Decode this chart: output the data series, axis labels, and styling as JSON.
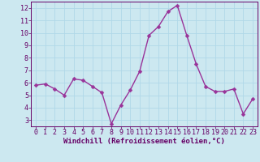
{
  "x": [
    0,
    1,
    2,
    3,
    4,
    5,
    6,
    7,
    8,
    9,
    10,
    11,
    12,
    13,
    14,
    15,
    16,
    17,
    18,
    19,
    20,
    21,
    22,
    23
  ],
  "y": [
    5.8,
    5.9,
    5.5,
    5.0,
    6.3,
    6.2,
    5.7,
    5.2,
    2.7,
    4.2,
    5.4,
    6.9,
    9.8,
    10.5,
    11.7,
    12.2,
    9.8,
    7.5,
    5.7,
    5.3,
    5.3,
    5.5,
    3.5,
    4.7
  ],
  "xlabel": "Windchill (Refroidissement éolien,°C)",
  "line_color": "#993399",
  "marker_color": "#993399",
  "bg_color": "#cce8f0",
  "grid_color": "#b0d8e8",
  "ylim": [
    2.5,
    12.5
  ],
  "xlim": [
    -0.5,
    23.5
  ],
  "yticks": [
    3,
    4,
    5,
    6,
    7,
    8,
    9,
    10,
    11,
    12
  ],
  "xticks": [
    0,
    1,
    2,
    3,
    4,
    5,
    6,
    7,
    8,
    9,
    10,
    11,
    12,
    13,
    14,
    15,
    16,
    17,
    18,
    19,
    20,
    21,
    22,
    23
  ],
  "xlabel_fontsize": 6.5,
  "tick_fontsize": 6.0,
  "linewidth": 1.0,
  "markersize": 2.5
}
